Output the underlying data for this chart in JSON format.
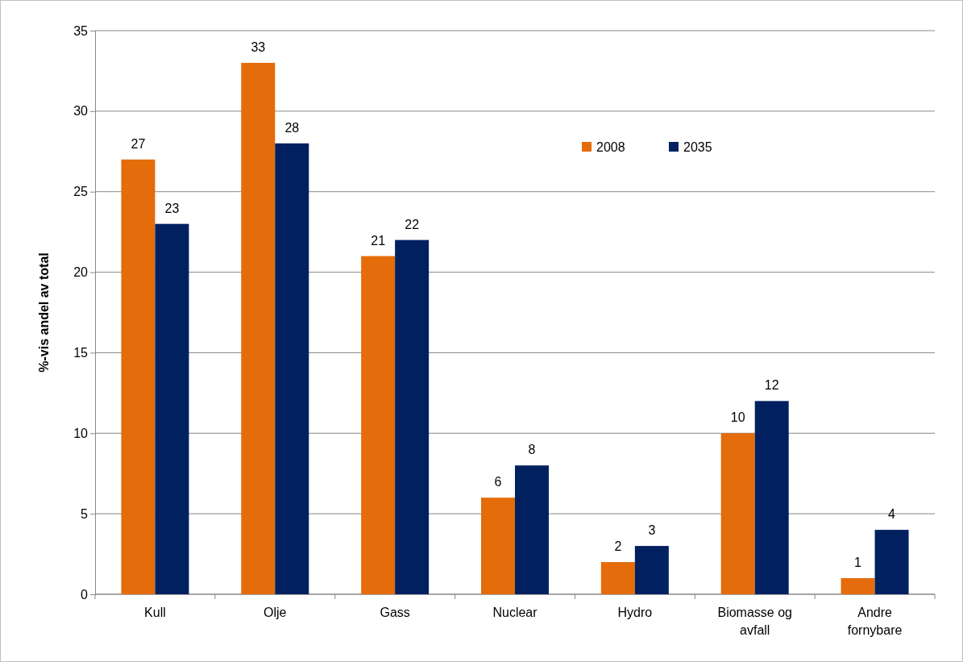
{
  "chart_data": {
    "type": "bar",
    "ylabel": "%-vis andel av total",
    "categories": [
      "Kull",
      "Olje",
      "Gass",
      "Nuclear",
      "Hydro",
      "Biomasse og avfall",
      "Andre fornybare"
    ],
    "series": [
      {
        "name": "2008",
        "color": "#e46c0a",
        "values": [
          27,
          33,
          21,
          6,
          2,
          10,
          1
        ]
      },
      {
        "name": "2035",
        "color": "#002060",
        "values": [
          23,
          28,
          22,
          8,
          3,
          12,
          4
        ]
      }
    ],
    "ylim": [
      0,
      35
    ],
    "yticks": [
      0,
      5,
      10,
      15,
      20,
      25,
      30,
      35
    ],
    "grid": "y",
    "legend": "top right",
    "data_labels": true
  }
}
